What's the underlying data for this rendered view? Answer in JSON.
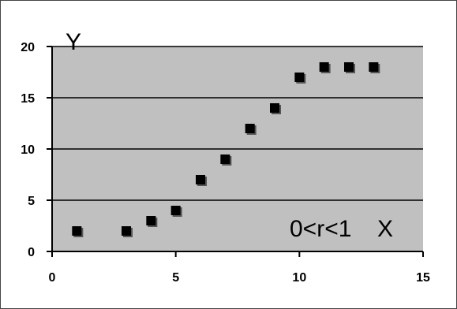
{
  "chart_data": {
    "type": "scatter",
    "x": [
      1,
      3,
      4,
      5,
      6,
      7,
      8,
      9,
      10,
      11,
      12,
      13
    ],
    "y": [
      2,
      2,
      3,
      4,
      7,
      9,
      12,
      14,
      17,
      18,
      18,
      18
    ],
    "xlim": [
      0,
      15
    ],
    "ylim": [
      0,
      20
    ],
    "xticks": [
      0,
      5,
      10,
      15
    ],
    "yticks": [
      0,
      5,
      10,
      15,
      20
    ],
    "xlabel": "X",
    "ylabel": "Y",
    "annotation": "0<r<1",
    "grid": "horizontal",
    "colors": {
      "plot_background": "#c0c0c0",
      "marker": "#000000",
      "gridline": "#000000"
    },
    "marker_shape": "square"
  }
}
